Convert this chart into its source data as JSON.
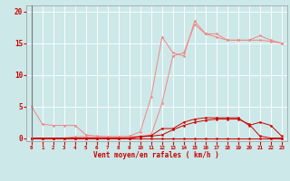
{
  "x": [
    0,
    1,
    2,
    3,
    4,
    5,
    6,
    7,
    8,
    9,
    10,
    11,
    12,
    13,
    14,
    15,
    16,
    17,
    18,
    19,
    20,
    21,
    22,
    23
  ],
  "line1_light": [
    5.0,
    2.2,
    2.0,
    2.0,
    2.0,
    0.5,
    0.3,
    0.2,
    0.2,
    0.3,
    1.0,
    6.5,
    16.0,
    13.5,
    13.0,
    18.5,
    16.5,
    16.5,
    15.5,
    15.5,
    15.5,
    16.2,
    15.5,
    15.0
  ],
  "line2_light": [
    0.0,
    0.0,
    0.0,
    0.0,
    0.2,
    0.2,
    0.2,
    0.2,
    0.2,
    0.2,
    0.3,
    0.5,
    5.5,
    13.0,
    13.5,
    18.0,
    16.5,
    16.0,
    15.5,
    15.5,
    15.5,
    15.5,
    15.3,
    15.0
  ],
  "line3_dark": [
    0.0,
    0.0,
    0.0,
    0.0,
    0.0,
    0.0,
    0.0,
    0.0,
    0.0,
    0.0,
    0.2,
    0.4,
    1.5,
    1.5,
    2.5,
    3.0,
    3.2,
    3.2,
    3.2,
    3.2,
    2.0,
    2.5,
    2.0,
    0.3
  ],
  "line4_dark": [
    0.0,
    0.0,
    0.0,
    0.0,
    0.0,
    0.0,
    0.0,
    0.0,
    0.0,
    0.0,
    0.2,
    0.3,
    0.5,
    1.3,
    2.0,
    2.5,
    2.8,
    3.0,
    3.0,
    3.0,
    2.2,
    0.3,
    0.0,
    0.0
  ],
  "line5_zero": [
    0.0,
    0.0,
    0.0,
    0.0,
    0.0,
    0.0,
    0.0,
    0.0,
    0.0,
    0.0,
    0.0,
    0.0,
    0.0,
    0.0,
    0.0,
    0.0,
    0.0,
    0.0,
    0.0,
    0.0,
    0.0,
    0.0,
    0.0,
    0.0
  ],
  "bg_color": "#cde8e8",
  "grid_color": "#ffffff",
  "line_color_light": "#ee8888",
  "line_color_dark": "#cc0000",
  "xlabel": "Vent moyen/en rafales ( km/h )",
  "ylim": [
    -0.5,
    21
  ],
  "xlim": [
    -0.5,
    23.5
  ],
  "yticks": [
    0,
    5,
    10,
    15,
    20
  ],
  "xtick_labels": [
    "0",
    "1",
    "2",
    "3",
    "4",
    "5",
    "6",
    "7",
    "8",
    "9",
    "10",
    "11",
    "12",
    "13",
    "14",
    "15",
    "16",
    "17",
    "18",
    "19",
    "20",
    "21",
    "22",
    "23"
  ]
}
